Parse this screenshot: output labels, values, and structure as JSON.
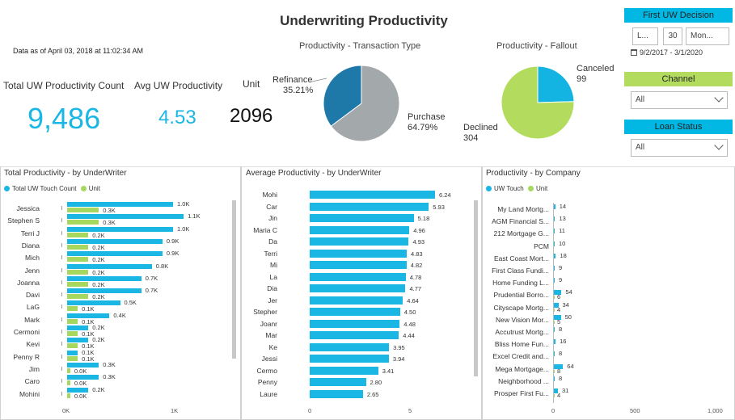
{
  "header": {
    "title": "Underwriting Productivity",
    "as_of": "Data as of April 03, 2018 at 11:02:34 AM"
  },
  "kpis": {
    "total_label": "Total UW Productivity Count",
    "total_value": "9,486",
    "avg_label": "Avg UW Productivity",
    "avg_value": "4.53",
    "unit_label": "Unit",
    "unit_value": "2096"
  },
  "pie_type": {
    "title": "Productivity - Transaction Type",
    "slices": [
      {
        "name": "Refinance",
        "pct": "35.21%",
        "value": 35.21,
        "color": "#1e78a8"
      },
      {
        "name": "Purchase",
        "pct": "64.79%",
        "value": 64.79,
        "color": "#a3a8aa"
      }
    ]
  },
  "pie_fallout": {
    "title": "Productivity - Fallout",
    "slices": [
      {
        "name": "Canceled",
        "count": "99",
        "value": 99,
        "color": "#13b3e2"
      },
      {
        "name": "Declined",
        "count": "304",
        "value": 304,
        "color": "#b3dc5f"
      }
    ]
  },
  "slicers": {
    "first_uw": {
      "title": "First UW Decision",
      "part1": "L...",
      "part2": "30",
      "part3": "Mon...",
      "range": "9/2/2017 - 3/1/2020"
    },
    "channel": {
      "title": "Channel",
      "value": "All"
    },
    "loan_status": {
      "title": "Loan Status",
      "value": "All"
    }
  },
  "colors": {
    "accent_blue": "#1ab6e4",
    "accent_green": "#a6d85f"
  },
  "total_productivity": {
    "title": "Total Productivity - by UnderWriter",
    "legend": [
      "Total UW Touch Count",
      "Unit"
    ],
    "axis": [
      "0K",
      "1K"
    ],
    "rows": [
      {
        "name": "Jessica",
        "touch": 1000,
        "touch_label": "1.0K",
        "unit": 300,
        "unit_label": "0.3K"
      },
      {
        "name": "Stephen S",
        "touch": 1100,
        "touch_label": "1.1K",
        "unit": 300,
        "unit_label": "0.3K"
      },
      {
        "name": "Terri J",
        "touch": 1000,
        "touch_label": "1.0K",
        "unit": 200,
        "unit_label": "0.2K"
      },
      {
        "name": "Diana",
        "touch": 900,
        "touch_label": "0.9K",
        "unit": 200,
        "unit_label": "0.2K"
      },
      {
        "name": "Mich",
        "touch": 900,
        "touch_label": "0.9K",
        "unit": 200,
        "unit_label": "0.2K"
      },
      {
        "name": "Jenn",
        "touch": 800,
        "touch_label": "0.8K",
        "unit": 200,
        "unit_label": "0.2K"
      },
      {
        "name": "Joanna",
        "touch": 700,
        "touch_label": "0.7K",
        "unit": 200,
        "unit_label": "0.2K"
      },
      {
        "name": "Davi",
        "touch": 700,
        "touch_label": "0.7K",
        "unit": 200,
        "unit_label": "0.2K"
      },
      {
        "name": "LaG",
        "touch": 500,
        "touch_label": "0.5K",
        "unit": 100,
        "unit_label": "0.1K"
      },
      {
        "name": "Mark",
        "touch": 400,
        "touch_label": "0.4K",
        "unit": 100,
        "unit_label": "0.1K"
      },
      {
        "name": "Cermoni",
        "touch": 200,
        "touch_label": "0.2K",
        "unit": 100,
        "unit_label": "0.1K"
      },
      {
        "name": "Kevi",
        "touch": 200,
        "touch_label": "0.2K",
        "unit": 100,
        "unit_label": "0.1K"
      },
      {
        "name": "Penny R",
        "touch": 100,
        "touch_label": "0.1K",
        "unit": 100,
        "unit_label": "0.1K"
      },
      {
        "name": "Jim",
        "touch": 300,
        "touch_label": "0.3K",
        "unit": 30,
        "unit_label": "0.0K"
      },
      {
        "name": "Caro",
        "touch": 300,
        "touch_label": "0.3K",
        "unit": 30,
        "unit_label": "0.0K"
      },
      {
        "name": "Mohini",
        "touch": 200,
        "touch_label": "0.2K",
        "unit": 30,
        "unit_label": "0.0K"
      }
    ]
  },
  "avg_productivity": {
    "title": "Average Productivity - by UnderWriter",
    "axis": [
      "0",
      "5"
    ],
    "rows": [
      {
        "name": "Mohi",
        "value": 6.24,
        "label": "6.24"
      },
      {
        "name": "Car",
        "value": 5.93,
        "label": "5.93"
      },
      {
        "name": "Jin",
        "value": 5.18,
        "label": "5.18"
      },
      {
        "name": "Maria C",
        "value": 4.96,
        "label": "4.96"
      },
      {
        "name": "Da",
        "value": 4.93,
        "label": "4.93"
      },
      {
        "name": "Terri",
        "value": 4.83,
        "label": "4.83"
      },
      {
        "name": "Mi",
        "value": 4.82,
        "label": "4.82"
      },
      {
        "name": "La",
        "value": 4.78,
        "label": "4.78"
      },
      {
        "name": "Dia",
        "value": 4.77,
        "label": "4.77"
      },
      {
        "name": "Jer",
        "value": 4.64,
        "label": "4.64"
      },
      {
        "name": "Stepher",
        "value": 4.5,
        "label": "4.50"
      },
      {
        "name": "Joanr",
        "value": 4.48,
        "label": "4.48"
      },
      {
        "name": "Mar",
        "value": 4.44,
        "label": "4.44"
      },
      {
        "name": "Ke",
        "value": 3.95,
        "label": "3.95"
      },
      {
        "name": "Jessi",
        "value": 3.94,
        "label": "3.94"
      },
      {
        "name": "Cermo",
        "value": 3.41,
        "label": "3.41"
      },
      {
        "name": "Penny",
        "value": 2.8,
        "label": "2.80"
      },
      {
        "name": "Laure",
        "value": 2.65,
        "label": "2.65"
      }
    ]
  },
  "company_productivity": {
    "title": "Productivity - by Company",
    "legend": [
      "UW Touch",
      "Unit"
    ],
    "axis": [
      "0",
      "500",
      "1,000"
    ],
    "rows": [
      {
        "name": "My Land Mortg...",
        "touch": 14,
        "unit": 0,
        "label": "14",
        "unit_label": ""
      },
      {
        "name": "AGM Financial S...",
        "touch": 13,
        "unit": 0,
        "label": "13",
        "unit_label": ""
      },
      {
        "name": "212 Mortgage G...",
        "touch": 11,
        "unit": 0,
        "label": "11",
        "unit_label": ""
      },
      {
        "name": "PCM",
        "touch": 10,
        "unit": 0,
        "label": "10",
        "unit_label": ""
      },
      {
        "name": "East Coast Mort...",
        "touch": 18,
        "unit": 0,
        "label": "18",
        "unit_label": ""
      },
      {
        "name": "First Class Fundi...",
        "touch": 9,
        "unit": 0,
        "label": "9",
        "unit_label": ""
      },
      {
        "name": "Home Funding L...",
        "touch": 9,
        "unit": 0,
        "label": "9",
        "unit_label": ""
      },
      {
        "name": "Prudential Borro...",
        "touch": 54,
        "unit": 6,
        "label": "54",
        "unit_label": "6"
      },
      {
        "name": "Cityscape Mortg...",
        "touch": 34,
        "unit": 4,
        "label": "34",
        "unit_label": "4"
      },
      {
        "name": "New Vision Mor...",
        "touch": 50,
        "unit": 5,
        "label": "50",
        "unit_label": "5"
      },
      {
        "name": "Accutrust Mortg...",
        "touch": 8,
        "unit": 0,
        "label": "8",
        "unit_label": ""
      },
      {
        "name": "Bliss Home Fun...",
        "touch": 16,
        "unit": 0,
        "label": "16",
        "unit_label": ""
      },
      {
        "name": "Excel Credit and...",
        "touch": 8,
        "unit": 0,
        "label": "8",
        "unit_label": ""
      },
      {
        "name": "Mega Mortgage...",
        "touch": 64,
        "unit": 8,
        "label": "64",
        "unit_label": "8"
      },
      {
        "name": "Neighborhood ...",
        "touch": 8,
        "unit": 0,
        "label": "8",
        "unit_label": ""
      },
      {
        "name": "Prosper First Fu...",
        "touch": 31,
        "unit": 4,
        "label": "31",
        "unit_label": "4"
      }
    ]
  }
}
